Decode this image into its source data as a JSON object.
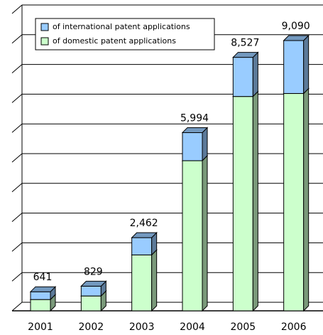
{
  "chart_data": {
    "type": "bar3d_stacked",
    "categories": [
      "2001",
      "2002",
      "2003",
      "2004",
      "2005",
      "2006"
    ],
    "series": [
      {
        "name": "of domestic patent applications",
        "color": "#ccffcc",
        "values": [
          380,
          500,
          1880,
          5050,
          7210,
          7310
        ]
      },
      {
        "name": "of international patent applications",
        "color": "#99ccff",
        "values": [
          261,
          329,
          582,
          944,
          1317,
          1780
        ]
      }
    ],
    "totals": [
      641,
      829,
      2462,
      5994,
      8527,
      9090
    ],
    "total_labels": [
      "641",
      "829",
      "2,462",
      "5,994",
      "8,527",
      "9,090"
    ],
    "ylim": [
      0,
      10000
    ],
    "yticks": [
      0,
      1000,
      2000,
      3000,
      4000,
      5000,
      6000,
      7000,
      8000,
      9000,
      10000
    ],
    "grid": true
  }
}
